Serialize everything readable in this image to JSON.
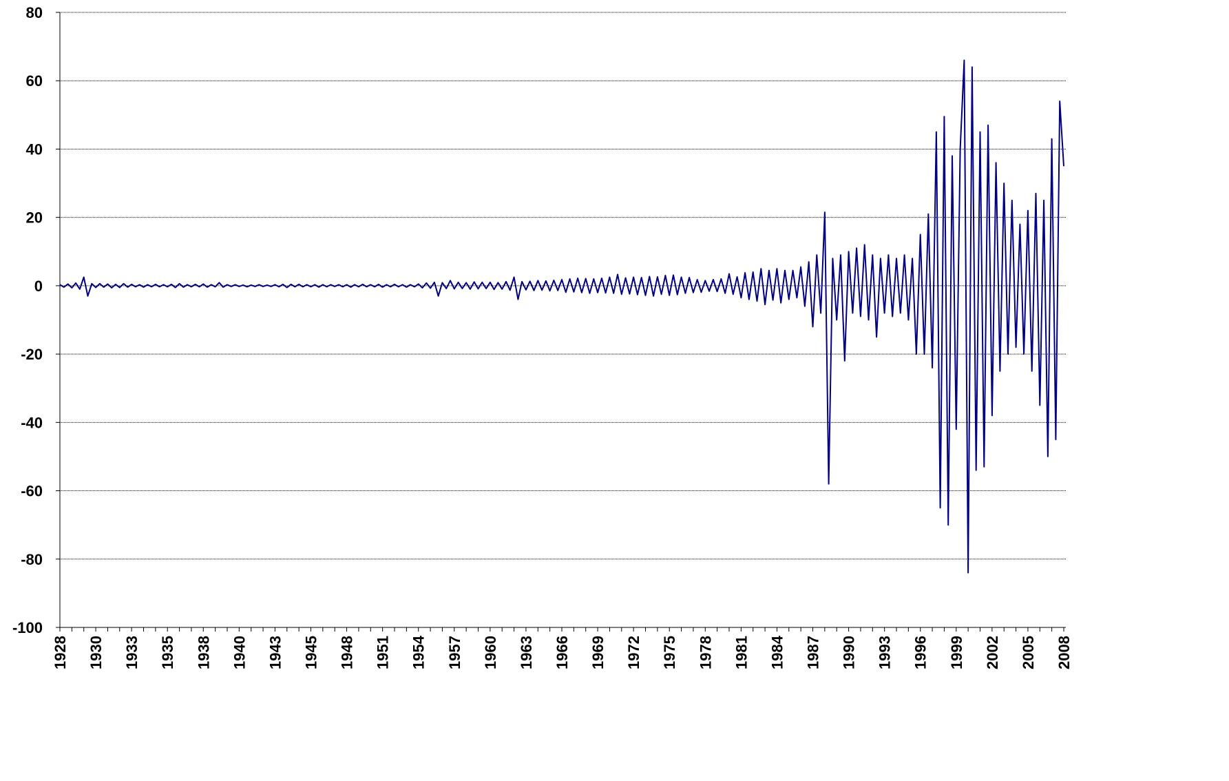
{
  "chart_data": {
    "type": "line",
    "categories": [
      "1928",
      null,
      null,
      null,
      null,
      null,
      null,
      null,
      null,
      "1930",
      null,
      null,
      null,
      null,
      null,
      null,
      null,
      null,
      "1933",
      null,
      null,
      null,
      null,
      null,
      null,
      null,
      null,
      "1935",
      null,
      null,
      null,
      null,
      null,
      null,
      null,
      null,
      "1938",
      null,
      null,
      null,
      null,
      null,
      null,
      null,
      null,
      "1940",
      null,
      null,
      null,
      null,
      null,
      null,
      null,
      null,
      "1943",
      null,
      null,
      null,
      null,
      null,
      null,
      null,
      null,
      "1945",
      null,
      null,
      null,
      null,
      null,
      null,
      null,
      null,
      "1948",
      null,
      null,
      null,
      null,
      null,
      null,
      null,
      null,
      "1951",
      null,
      null,
      null,
      null,
      null,
      null,
      null,
      null,
      "1954",
      null,
      null,
      null,
      null,
      null,
      null,
      null,
      null,
      "1957",
      null,
      null,
      null,
      null,
      null,
      null,
      null,
      null,
      "1960",
      null,
      null,
      null,
      null,
      null,
      null,
      null,
      null,
      "1963",
      null,
      null,
      null,
      null,
      null,
      null,
      null,
      null,
      "1966",
      null,
      null,
      null,
      null,
      null,
      null,
      null,
      null,
      "1969",
      null,
      null,
      null,
      null,
      null,
      null,
      null,
      null,
      "1972",
      null,
      null,
      null,
      null,
      null,
      null,
      null,
      null,
      "1975",
      null,
      null,
      null,
      null,
      null,
      null,
      null,
      null,
      "1978",
      null,
      null,
      null,
      null,
      null,
      null,
      null,
      null,
      "1981",
      null,
      null,
      null,
      null,
      null,
      null,
      null,
      null,
      "1984",
      null,
      null,
      null,
      null,
      null,
      null,
      null,
      null,
      "1987",
      null,
      null,
      null,
      null,
      null,
      null,
      null,
      null,
      "1990",
      null,
      null,
      null,
      null,
      null,
      null,
      null,
      null,
      "1993",
      null,
      null,
      null,
      null,
      null,
      null,
      null,
      null,
      "1996",
      null,
      null,
      null,
      null,
      null,
      null,
      null,
      null,
      "1999",
      null,
      null,
      null,
      null,
      null,
      null,
      null,
      null,
      "2002",
      null,
      null,
      null,
      null,
      null,
      null,
      null,
      null,
      "2005",
      null,
      null,
      null,
      null,
      null,
      null,
      null,
      null,
      "2008"
    ],
    "series": [
      {
        "name": null,
        "color": "#000080",
        "values": [
          0.3,
          -0.4,
          0.5,
          -0.6,
          0.8,
          -1,
          2.5,
          -3,
          0.6,
          -0.5,
          0.6,
          -0.4,
          0.5,
          -0.6,
          0.4,
          -0.5,
          0.6,
          -0.4,
          0.4,
          -0.3,
          0.3,
          -0.4,
          0.3,
          -0.3,
          0.4,
          -0.3,
          0.3,
          -0.3,
          0.4,
          -0.5,
          0.6,
          -0.4,
          0.3,
          -0.3,
          0.4,
          -0.3,
          0.5,
          -0.4,
          0.3,
          -0.3,
          0.9,
          -0.4,
          0.3,
          -0.2,
          0.3,
          -0.2,
          0.2,
          -0.3,
          0.2,
          -0.2,
          0.3,
          -0.2,
          0.2,
          -0.2,
          0.3,
          -0.3,
          0.4,
          -0.5,
          0.4,
          -0.3,
          0.4,
          -0.3,
          0.3,
          -0.3,
          0.3,
          -0.4,
          0.3,
          -0.3,
          0.3,
          -0.2,
          0.3,
          -0.3,
          0.3,
          -0.4,
          0.3,
          -0.3,
          0.4,
          -0.3,
          0.3,
          -0.3,
          0.4,
          -0.4,
          0.3,
          -0.3,
          0.4,
          -0.3,
          0.3,
          -0.4,
          0.3,
          -0.3,
          0.5,
          -0.6,
          0.8,
          -0.7,
          1,
          -3,
          0.9,
          -0.8,
          1.5,
          -0.9,
          1,
          -0.8,
          0.9,
          -1,
          1.1,
          -0.9,
          1,
          -0.8,
          1,
          -1.1,
          0.9,
          -1,
          1.2,
          -1.3,
          2.5,
          -4,
          1.2,
          -1.2,
          1.3,
          -1.4,
          1.5,
          -1.3,
          1.4,
          -1.5,
          1.6,
          -1.4,
          1.8,
          -1.9,
          2,
          -1.8,
          2.2,
          -2,
          2.1,
          -2.2,
          2,
          -2,
          2.2,
          -2.1,
          2.5,
          -2.2,
          3.3,
          -2.5,
          2.3,
          -2.4,
          2.5,
          -2.6,
          2.4,
          -2.8,
          2.7,
          -3,
          2.6,
          -2.5,
          3,
          -2.8,
          3.1,
          -2.6,
          2.5,
          -2.2,
          2.4,
          -2,
          1.8,
          -1.9,
          1.5,
          -1.6,
          1.8,
          -1.7,
          2,
          -2.2,
          3.5,
          -2.5,
          2.6,
          -3.5,
          3.8,
          -4,
          4,
          -4.5,
          5,
          -5.5,
          4.5,
          -4.2,
          5,
          -5,
          4.5,
          -4,
          4.5,
          -3.5,
          5.5,
          -6,
          7,
          -12,
          9,
          -8,
          21.5,
          -58,
          8,
          -10,
          9,
          -22,
          10,
          -8,
          11,
          -9,
          12,
          -10,
          9,
          -15,
          8,
          -8,
          9,
          -9,
          8,
          -8,
          9,
          -10,
          8,
          -20,
          15,
          -20,
          21,
          -24,
          45,
          -65,
          49.5,
          -70,
          38,
          -42,
          40,
          66,
          -84,
          64,
          -54,
          45,
          -53,
          47,
          -38,
          36,
          -25,
          30,
          -20,
          25,
          -18,
          18,
          -20,
          22,
          -25,
          27,
          -35,
          25,
          -50,
          43,
          -45,
          54,
          35
        ]
      }
    ],
    "ylim": [
      -100,
      80
    ],
    "yticks": [
      -100,
      -80,
      -60,
      -40,
      -20,
      0,
      20,
      40,
      60,
      80
    ],
    "grid": true
  }
}
